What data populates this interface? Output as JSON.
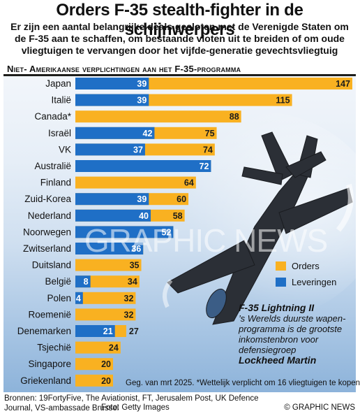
{
  "header": {
    "title": "Orders F-35 stealth-fighter in de schijnwerpers",
    "subtitle": "Er zijn een aantal belangrijke deals gesloten met de Verenigde Staten om de F-35 aan te schaffen, om bestaande vloten uit te breiden of om oude vliegtuigen te vervangen door het vijfde-generatie gevechtsvliegtuig"
  },
  "panel_title": "Niet- Amerikaanse verplichtingen aan het F-35-programma",
  "colors": {
    "orders": "#f9b121",
    "deliveries": "#1f6fc6",
    "dark": "#1d1d1b"
  },
  "chart_data": {
    "type": "bar",
    "orientation": "horizontal",
    "stacked": true,
    "categories": [
      "Japan",
      "Italië",
      "Canada*",
      "Israël",
      "VK",
      "Australië",
      "Finland",
      "Zuid-Korea",
      "Nederland",
      "Noorwegen",
      "Zwitserland",
      "Duitsland",
      "België",
      "Polen",
      "Roemenië",
      "Denemarken",
      "Tsjechië",
      "Singapore",
      "Griekenland"
    ],
    "series": [
      {
        "name": "Leveringen",
        "values": [
          39,
          39,
          null,
          42,
          37,
          72,
          null,
          39,
          40,
          52,
          36,
          null,
          8,
          4,
          null,
          21,
          null,
          null,
          null
        ]
      },
      {
        "name": "Orders",
        "values": [
          147,
          115,
          88,
          75,
          74,
          72,
          64,
          60,
          58,
          52,
          36,
          35,
          34,
          32,
          32,
          27,
          24,
          20,
          20
        ]
      }
    ],
    "legend_position": "right"
  },
  "legend": {
    "orders": "Orders",
    "deliveries": "Leveringen"
  },
  "caption": {
    "title": "F-35 Lightning II",
    "body": "’s Werelds duurste wapen-programma is de grootste inkomstenbron voor defensiegroep",
    "company": "Lockheed Martin"
  },
  "watermark": "GRAPHIC NEWS",
  "footnote": "Geg. van mrt 2025. *Wettelijk verplicht om 16 vliegtuigen te kopen",
  "footer": {
    "sources": "Bronnen: 19FortyFive, The Aviationist, FT, Jerusalem Post, UK Defence Journal, VS-ambassade Brussel",
    "photo": "Foto: Getty Images",
    "credit": "© GRAPHIC NEWS"
  }
}
